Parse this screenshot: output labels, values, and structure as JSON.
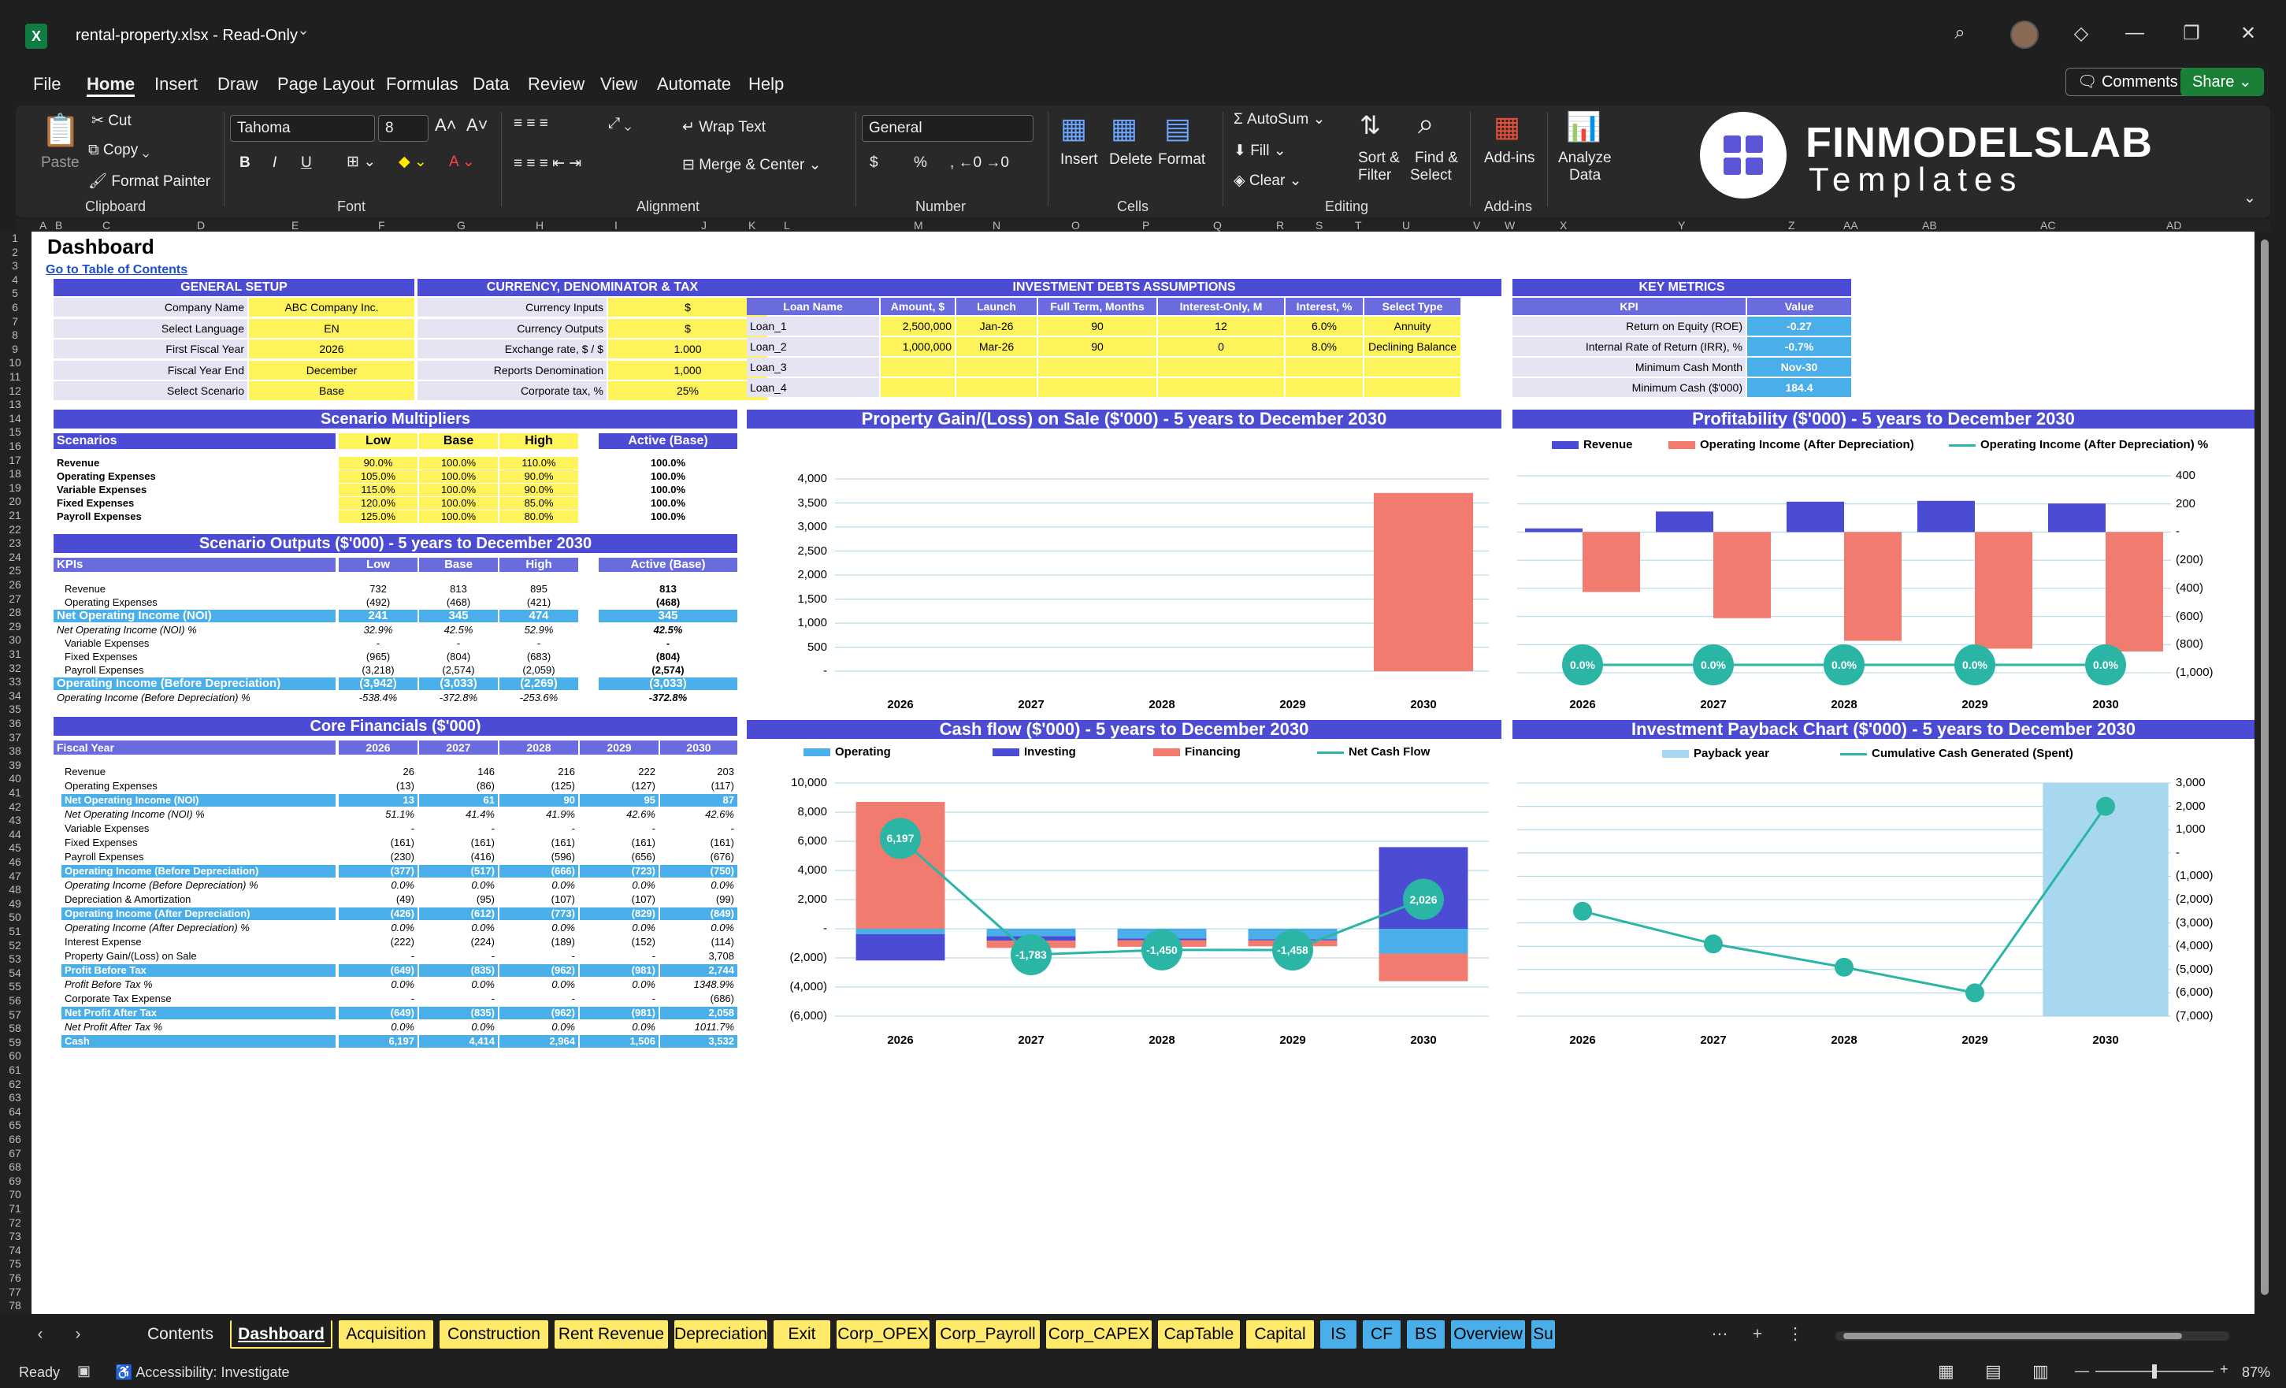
{
  "app": {
    "title": "rental-property.xlsx  -  Read-Only",
    "logo": "X"
  },
  "menu": {
    "items": [
      "File",
      "Home",
      "Insert",
      "Draw",
      "Page Layout",
      "Formulas",
      "Data",
      "Review",
      "View",
      "Automate",
      "Help"
    ],
    "active": "Home",
    "comments": "Comments",
    "share": "Share"
  },
  "ribbon": {
    "paste": "Paste",
    "cut": "Cut",
    "copy": "Copy",
    "format_painter": "Format Painter",
    "clipboard": "Clipboard",
    "font_name": "Tahoma",
    "font_size": "8",
    "font": "Font",
    "wrap_text": "Wrap Text",
    "merge_center": "Merge & Center",
    "alignment": "Alignment",
    "number_format": "General",
    "number": "Number",
    "insert": "Insert",
    "delete": "Delete",
    "format": "Format",
    "cells": "Cells",
    "autosum": "AutoSum",
    "fill": "Fill",
    "clear": "Clear",
    "sort_filter": "Sort &\nFilter",
    "sort_filter_1": "Sort &",
    "sort_filter_2": "Filter",
    "find_1": "Find &",
    "find_2": "Select",
    "editing": "Editing",
    "addins": "Add-ins",
    "addins_grp": "Add-ins",
    "analyze_1": "Analyze",
    "analyze_2": "Data",
    "brand_1": "FINMODELSLAB",
    "brand_2": "Templates",
    "bold": "B",
    "italic": "I",
    "underline": "U",
    "currency": "$",
    "percent": "%"
  },
  "columns": [
    "A",
    "B",
    "C",
    "D",
    "E",
    "F",
    "G",
    "H",
    "I",
    "J",
    "K",
    "L",
    "M",
    "N",
    "O",
    "P",
    "Q",
    "R",
    "S",
    "T",
    "U",
    "V",
    "W",
    "X",
    "Y",
    "Z",
    "AA",
    "AB",
    "AC",
    "AD"
  ],
  "sheet": {
    "title": "Dashboard",
    "link": "Go to Table of Contents",
    "general": {
      "header": "GENERAL SETUP",
      "rows": [
        [
          "Company Name",
          "ABC Company Inc."
        ],
        [
          "Select Language",
          "EN"
        ],
        [
          "First Fiscal Year",
          "2026"
        ],
        [
          "Fiscal Year End",
          "December"
        ],
        [
          "Select Scenario",
          "Base"
        ]
      ]
    },
    "currency": {
      "header": "CURRENCY, DENOMINATOR & TAX",
      "rows": [
        [
          "Currency Inputs",
          "$"
        ],
        [
          "Currency Outputs",
          "$"
        ],
        [
          "Exchange rate, $ / $",
          "1.000"
        ],
        [
          "Reports Denomination",
          "1,000"
        ],
        [
          "Corporate tax, %",
          "25%"
        ]
      ]
    },
    "debts": {
      "header": "INVESTMENT DEBTS ASSUMPTIONS",
      "cols": [
        "Loan Name",
        "Amount, $",
        "Launch",
        "Full Term, Months",
        "Interest-Only, M",
        "Interest, %",
        "Select Type"
      ],
      "rows": [
        [
          "Loan_1",
          "2,500,000",
          "Jan-26",
          "90",
          "12",
          "6.0%",
          "Annuity"
        ],
        [
          "Loan_2",
          "1,000,000",
          "Mar-26",
          "90",
          "0",
          "8.0%",
          "Declining Balance"
        ],
        [
          "Loan_3",
          "",
          "",
          "",
          "",
          "",
          ""
        ],
        [
          "Loan_4",
          "",
          "",
          "",
          "",
          "",
          ""
        ]
      ]
    },
    "metrics": {
      "header": "KEY METRICS",
      "cols": [
        "KPI",
        "Value"
      ],
      "rows": [
        [
          "Return on Equity (ROE)",
          "-0.27"
        ],
        [
          "Internal Rate of Return (IRR), %",
          "-0.7%"
        ],
        [
          "Minimum Cash Month",
          "Nov-30"
        ],
        [
          "Minimum Cash ($'000)",
          "184.4"
        ]
      ]
    },
    "multipliers": {
      "header": "Scenario Multipliers",
      "cols": [
        "Scenarios",
        "Low",
        "Base",
        "High",
        "Active (Base)"
      ],
      "rows": [
        [
          "Revenue",
          "90.0%",
          "100.0%",
          "110.0%",
          "100.0%"
        ],
        [
          "Operating Expenses",
          "105.0%",
          "100.0%",
          "90.0%",
          "100.0%"
        ],
        [
          "Variable Expenses",
          "115.0%",
          "100.0%",
          "90.0%",
          "100.0%"
        ],
        [
          "Fixed Expenses",
          "120.0%",
          "100.0%",
          "85.0%",
          "100.0%"
        ],
        [
          "Payroll Expenses",
          "125.0%",
          "100.0%",
          "80.0%",
          "100.0%"
        ]
      ]
    },
    "outputs": {
      "header": "Scenario Outputs ($'000) - 5 years to December 2030",
      "cols": [
        "KPIs",
        "Low",
        "Base",
        "High",
        "Active (Base)"
      ],
      "rows": [
        [
          "Revenue",
          "732",
          "813",
          "895",
          "813",
          "n"
        ],
        [
          "Operating Expenses",
          "(492)",
          "(468)",
          "(421)",
          "(468)",
          "n"
        ],
        [
          "Net Operating Income (NOI)",
          "241",
          "345",
          "474",
          "345",
          "h"
        ],
        [
          "Net Operating Income (NOI) %",
          "32.9%",
          "42.5%",
          "52.9%",
          "42.5%",
          "i"
        ],
        [
          "Variable Expenses",
          "-",
          "-",
          "-",
          "-",
          "n"
        ],
        [
          "Fixed Expenses",
          "(965)",
          "(804)",
          "(683)",
          "(804)",
          "n"
        ],
        [
          "Payroll Expenses",
          "(3,218)",
          "(2,574)",
          "(2,059)",
          "(2,574)",
          "n"
        ],
        [
          "Operating Income (Before Depreciation)",
          "(3,942)",
          "(3,033)",
          "(2,269)",
          "(3,033)",
          "h"
        ],
        [
          "Operating Income (Before Depreciation) %",
          "-538.4%",
          "-372.8%",
          "-253.6%",
          "-372.8%",
          "i"
        ]
      ]
    },
    "core": {
      "header": "Core Financials ($'000)",
      "cols": [
        "Fiscal Year",
        "2026",
        "2027",
        "2028",
        "2029",
        "2030"
      ],
      "rows": [
        [
          "Revenue",
          "26",
          "146",
          "216",
          "222",
          "203",
          "n"
        ],
        [
          "Operating Expenses",
          "(13)",
          "(86)",
          "(125)",
          "(127)",
          "(117)",
          "n"
        ],
        [
          "Net Operating Income (NOI)",
          "13",
          "61",
          "90",
          "95",
          "87",
          "h"
        ],
        [
          "Net Operating Income (NOI) %",
          "51.1%",
          "41.4%",
          "41.9%",
          "42.6%",
          "42.6%",
          "i"
        ],
        [
          "Variable Expenses",
          "-",
          "-",
          "-",
          "-",
          "-",
          "n"
        ],
        [
          "Fixed Expenses",
          "(161)",
          "(161)",
          "(161)",
          "(161)",
          "(161)",
          "n"
        ],
        [
          "Payroll Expenses",
          "(230)",
          "(416)",
          "(596)",
          "(656)",
          "(676)",
          "n"
        ],
        [
          "Operating Income (Before Depreciation)",
          "(377)",
          "(517)",
          "(666)",
          "(723)",
          "(750)",
          "h"
        ],
        [
          "Operating Income (Before Depreciation) %",
          "0.0%",
          "0.0%",
          "0.0%",
          "0.0%",
          "0.0%",
          "i"
        ],
        [
          "Depreciation & Amortization",
          "(49)",
          "(95)",
          "(107)",
          "(107)",
          "(99)",
          "n"
        ],
        [
          "Operating Income (After Depreciation)",
          "(426)",
          "(612)",
          "(773)",
          "(829)",
          "(849)",
          "h"
        ],
        [
          "Operating Income (After Depreciation) %",
          "0.0%",
          "0.0%",
          "0.0%",
          "0.0%",
          "0.0%",
          "i"
        ],
        [
          "Interest Expense",
          "(222)",
          "(224)",
          "(189)",
          "(152)",
          "(114)",
          "n"
        ],
        [
          "Property Gain/(Loss) on Sale",
          "-",
          "-",
          "-",
          "-",
          "3,708",
          "n"
        ],
        [
          "Profit Before Tax",
          "(649)",
          "(835)",
          "(962)",
          "(981)",
          "2,744",
          "h"
        ],
        [
          "Profit Before Tax %",
          "0.0%",
          "0.0%",
          "0.0%",
          "0.0%",
          "1348.9%",
          "i"
        ],
        [
          "Corporate Tax Expense",
          "-",
          "-",
          "-",
          "-",
          "(686)",
          "n"
        ],
        [
          "Net Profit After Tax",
          "(649)",
          "(835)",
          "(962)",
          "(981)",
          "2,058",
          "h"
        ],
        [
          "Net Profit After Tax %",
          "0.0%",
          "0.0%",
          "0.0%",
          "0.0%",
          "1011.7%",
          "i"
        ],
        [
          "Cash",
          "6,197",
          "4,414",
          "2,964",
          "1,506",
          "3,532",
          "h"
        ]
      ]
    }
  },
  "chart_data": [
    {
      "type": "bar",
      "title": "Property Gain/(Loss) on Sale ($'000) - 5 years to December 2030",
      "categories": [
        "2026",
        "2027",
        "2028",
        "2029",
        "2030"
      ],
      "values": [
        0,
        0,
        0,
        0,
        3708
      ],
      "ylim": [
        0,
        4000
      ],
      "yticks": [
        "4,000",
        "3,500",
        "3,000",
        "2,500",
        "2,000",
        "1,500",
        "1,000",
        "500",
        "-"
      ],
      "color": "#f07b6e"
    },
    {
      "type": "bar",
      "title": "Profitability ($'000) - 5 years to December 2030",
      "categories": [
        "2026",
        "2027",
        "2028",
        "2029",
        "2030"
      ],
      "legend": [
        "Revenue",
        "Operating Income (After Depreciation)",
        "Operating Income (After Depreciation) %"
      ],
      "series": [
        {
          "name": "Revenue",
          "values": [
            26,
            146,
            216,
            222,
            203
          ],
          "color": "#4b4bd4"
        },
        {
          "name": "Operating Income (After Depreciation)",
          "values": [
            -426,
            -612,
            -773,
            -829,
            -849
          ],
          "color": "#f07b6e"
        },
        {
          "name": "Operating Income (After Depreciation) %",
          "values": [
            0,
            0,
            0,
            0,
            0
          ],
          "labels": [
            "0.0%",
            "0.0%",
            "0.0%",
            "0.0%",
            "0.0%"
          ],
          "color": "#2bb5a5"
        }
      ],
      "ylim": [
        -1000,
        400
      ],
      "yticks": [
        "400",
        "200",
        "-",
        "(200)",
        "(400)",
        "(600)",
        "(800)",
        "(1,000)"
      ]
    },
    {
      "type": "bar",
      "title": "Cash flow ($'000) - 5 years to December 2030",
      "categories": [
        "2026",
        "2027",
        "2028",
        "2029",
        "2030"
      ],
      "legend": [
        "Operating",
        "Investing",
        "Financing",
        "Net Cash Flow"
      ],
      "series": [
        {
          "name": "Operating",
          "values": [
            -377,
            -517,
            -666,
            -723,
            -1700
          ],
          "color": "#4aaee8"
        },
        {
          "name": "Investing",
          "values": [
            -1800,
            -300,
            -120,
            -80,
            5600
          ],
          "color": "#4b4bd4"
        },
        {
          "name": "Financing",
          "values": [
            8700,
            -500,
            -450,
            -400,
            -1900
          ],
          "color": "#f07b6e"
        },
        {
          "name": "Net Cash Flow",
          "values": [
            6197,
            -1783,
            -1450,
            -1458,
            2026
          ],
          "labels": [
            "6,197",
            "-1,783",
            "-1,450",
            "-1,458",
            "2,026"
          ],
          "color": "#2bb5a5"
        }
      ],
      "ylim": [
        -6000,
        10000
      ],
      "yticks": [
        "10,000",
        "8,000",
        "6,000",
        "4,000",
        "2,000",
        "-",
        "(2,000)",
        "(4,000)",
        "(6,000)"
      ]
    },
    {
      "type": "line",
      "title": "Investment Payback Chart ($'000) - 5 years to December 2030",
      "categories": [
        "2026",
        "2027",
        "2028",
        "2029",
        "2030"
      ],
      "legend": [
        "Payback year",
        "Cumulative Cash Generated (Spent)"
      ],
      "series": [
        {
          "name": "Cumulative Cash Generated (Spent)",
          "values": [
            -2500,
            -3900,
            -4900,
            -6000,
            2000
          ],
          "color": "#2bb5a5"
        },
        {
          "name": "Payback year",
          "values": [
            0,
            0,
            0,
            0,
            1
          ],
          "color": "#a7d8f0"
        }
      ],
      "ylim": [
        -7000,
        3000
      ],
      "yticks": [
        "3,000",
        "2,000",
        "1,000",
        "-",
        "(1,000)",
        "(2,000)",
        "(3,000)",
        "(4,000)",
        "(5,000)",
        "(6,000)",
        "(7,000)"
      ]
    }
  ],
  "tabs": [
    {
      "label": "Contents",
      "color": "none"
    },
    {
      "label": "Dashboard",
      "color": "active"
    },
    {
      "label": "Acquisition",
      "color": "#ffea6b"
    },
    {
      "label": "Construction",
      "color": "#ffea6b"
    },
    {
      "label": "Rent Revenue",
      "color": "#ffea6b"
    },
    {
      "label": "Depreciation",
      "color": "#ffea6b"
    },
    {
      "label": "Exit",
      "color": "#ffea6b"
    },
    {
      "label": "Corp_OPEX",
      "color": "#ffea6b"
    },
    {
      "label": "Corp_Payroll",
      "color": "#ffea6b"
    },
    {
      "label": "Corp_CAPEX",
      "color": "#ffea6b"
    },
    {
      "label": "CapTable",
      "color": "#ffea6b"
    },
    {
      "label": "Capital",
      "color": "#ffea6b"
    },
    {
      "label": "IS",
      "color": "#4aaee8"
    },
    {
      "label": "CF",
      "color": "#4aaee8"
    },
    {
      "label": "BS",
      "color": "#4aaee8"
    },
    {
      "label": "Overview",
      "color": "#4aaee8"
    },
    {
      "label": "Su",
      "color": "#4aaee8"
    }
  ],
  "status": {
    "ready": "Ready",
    "accessibility": "Accessibility: Investigate",
    "zoom": "87%"
  }
}
